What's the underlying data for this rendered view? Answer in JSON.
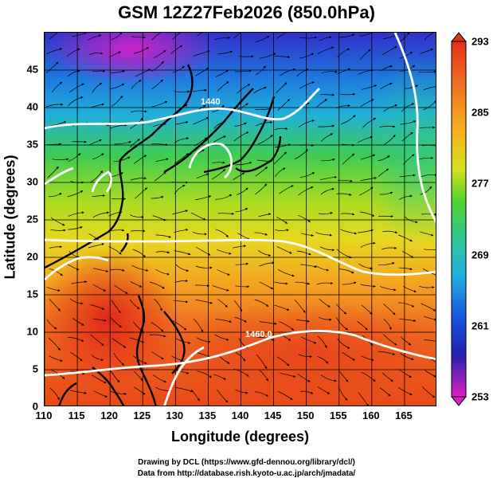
{
  "title": "GSM 12Z27Feb2026 (850.0hPa)",
  "xlabel": "Longitude (degrees)",
  "ylabel": "Latitude  (degrees)",
  "x_ticks": [
    "110",
    "115",
    "120",
    "125",
    "130",
    "135",
    "140",
    "145",
    "150",
    "155",
    "160",
    "165"
  ],
  "y_ticks": [
    "45",
    "40",
    "35",
    "30",
    "25",
    "20",
    "15",
    "10",
    "5",
    "0"
  ],
  "colorbar_ticks": [
    "293",
    "285",
    "277",
    "269",
    "261",
    "253"
  ],
  "contour_labels": [
    "1440",
    "1460.0"
  ],
  "credits": [
    "Drawing by DCL (https://www.gfd-dennou.org/library/dcl/)",
    "Data from http://database.rish.kyoto-u.ac.jp/arch/jmadata/"
  ],
  "colors": {
    "cold_magenta": "#e020c0",
    "blue": "#1a3ad8",
    "cyan": "#20b8e0",
    "green": "#3ccc3c",
    "yellow": "#d8e020",
    "orange": "#f07a18",
    "red": "#e82818",
    "contour": "#ffffff",
    "streamline": "#000000"
  },
  "chart_data": {
    "type": "heatmap",
    "title": "GSM 12Z27Feb2026 (850.0hPa)",
    "xlabel": "Longitude (degrees)",
    "ylabel": "Latitude  (degrees)",
    "xlim": [
      110,
      170
    ],
    "ylim": [
      0,
      50
    ],
    "colorbar_range": [
      253,
      293
    ],
    "colorbar_ticks": [
      293,
      285,
      277,
      269,
      261,
      253
    ],
    "contours": [
      1440,
      1460
    ],
    "grid": true
  }
}
